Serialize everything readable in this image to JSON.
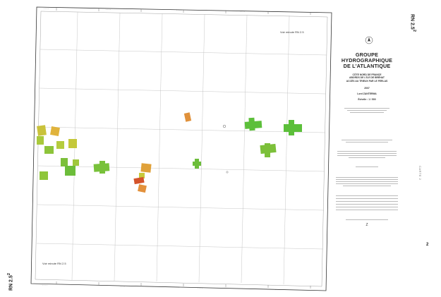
{
  "sheet_code": "RN 2.5",
  "sheet_code_superscript": "2",
  "title": {
    "line1": "GROUPE HYDROGRAPHIQUE",
    "line2": "DE L'ATLANTIQUE",
    "sub1": "CÔTE NORD DE FRANCE",
    "sub2": "ABORDS DE L'ÎLE DE BRÉHAT",
    "sub3": "ACCÈS AU TRIEUX PAR LE FERLAS",
    "year": "2007",
    "author": "Lord ZANTERMA",
    "scale": "Échelle : 1 / 500"
  },
  "corner_labels": {
    "top": "Voir minute RN 2.5",
    "bottom": "Voir minute RN 2.5"
  },
  "right_margin_text": "CARTE 2",
  "right_margin_number": "2",
  "page_number_right": "Z",
  "legend_stamp": "Z",
  "colors": {
    "frame": "#333333",
    "grid": "#b8b8b8",
    "green": "#5cbf3a",
    "yellowgreen": "#a9c93b",
    "orange": "#e3913b",
    "red": "#cc3f2a"
  }
}
